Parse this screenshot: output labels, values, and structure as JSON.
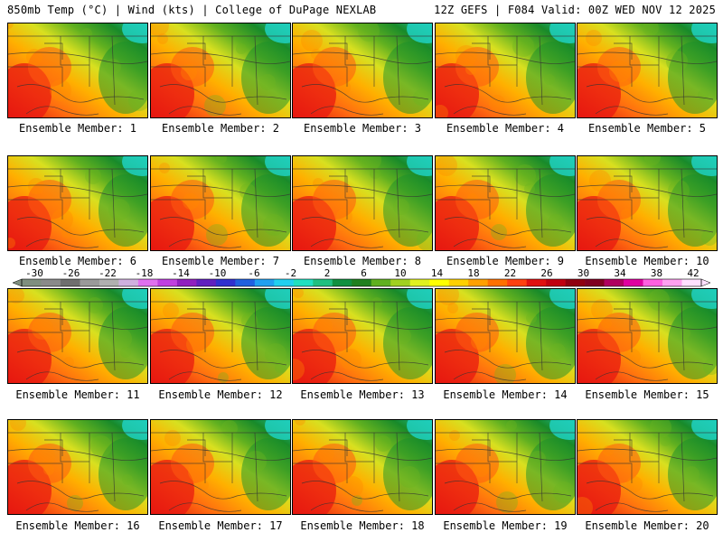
{
  "header": {
    "left": "850mb Temp (°C) | Wind (kts) | College of DuPage NEXLAB",
    "right": "12Z GEFS | F084 Valid: 00Z WED NOV 12 2025"
  },
  "panels": [
    {
      "label": "Ensemble Member: 1"
    },
    {
      "label": "Ensemble Member: 2"
    },
    {
      "label": "Ensemble Member: 3"
    },
    {
      "label": "Ensemble Member: 4"
    },
    {
      "label": "Ensemble Member: 5"
    },
    {
      "label": "Ensemble Member: 6"
    },
    {
      "label": "Ensemble Member: 7"
    },
    {
      "label": "Ensemble Member: 8"
    },
    {
      "label": "Ensemble Member: 9"
    },
    {
      "label": "Ensemble Member: 10"
    },
    {
      "label": "Ensemble Member: 11"
    },
    {
      "label": "Ensemble Member: 12"
    },
    {
      "label": "Ensemble Member: 13"
    },
    {
      "label": "Ensemble Member: 14"
    },
    {
      "label": "Ensemble Member: 15"
    },
    {
      "label": "Ensemble Member: 16"
    },
    {
      "label": "Ensemble Member: 17"
    },
    {
      "label": "Ensemble Member: 18"
    },
    {
      "label": "Ensemble Member: 19"
    },
    {
      "label": "Ensemble Member: 20"
    }
  ],
  "colorbar": {
    "ticks": [
      "-30",
      "-26",
      "-22",
      "-18",
      "-14",
      "-10",
      "-6",
      "-2",
      "2",
      "6",
      "10",
      "14",
      "18",
      "22",
      "26",
      "30",
      "34",
      "38",
      "42"
    ],
    "colors": [
      "#7f8f7f",
      "#8a8a8a",
      "#6f6f6f",
      "#9a9a9a",
      "#b0b0b0",
      "#d0b0e0",
      "#e070f0",
      "#c040e0",
      "#9020c0",
      "#6020c0",
      "#3030d0",
      "#2060e0",
      "#20a0f0",
      "#20d0f0",
      "#20e0c0",
      "#20c080",
      "#109040",
      "#208020",
      "#60b020",
      "#a0d020",
      "#e0f020",
      "#ffff00",
      "#ffd000",
      "#ffa000",
      "#ff7000",
      "#ff4010",
      "#e01010",
      "#c00010",
      "#900010",
      "#800020",
      "#b00060",
      "#e000a0",
      "#ff60e0",
      "#ffa0f0",
      "#ffe0ff"
    ]
  }
}
